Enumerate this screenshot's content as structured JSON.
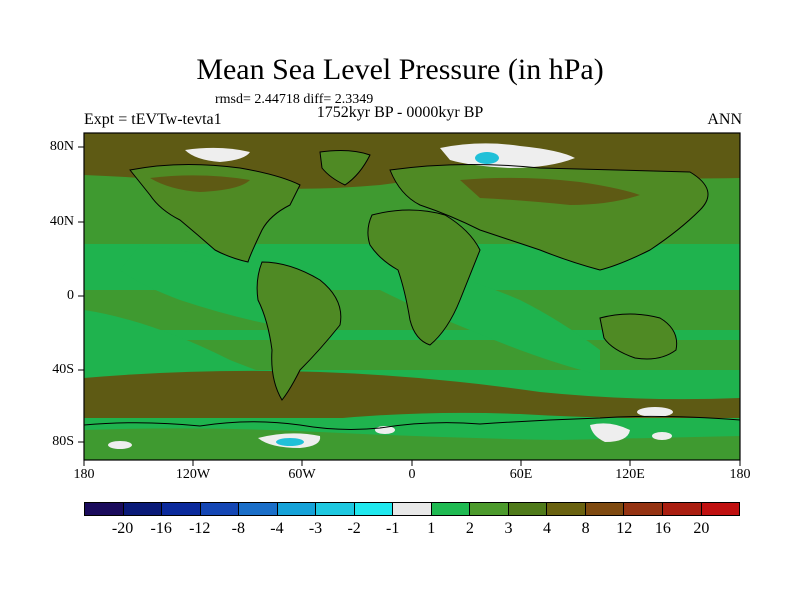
{
  "header": {
    "title": "Mean Sea Level Pressure (in hPa)",
    "stats": "rmsd= 2.44718 diff= 2.3349",
    "period": "1752kyr BP - 0000kyr BP",
    "experiment": "Expt = tEVTw-tevta1",
    "season": "ANN"
  },
  "axes": {
    "lat_ticks": [
      "80N",
      "40N",
      "0",
      "40S",
      "80S"
    ],
    "lon_ticks": [
      "180",
      "120W",
      "60W",
      "0",
      "60E",
      "120E",
      "180"
    ]
  },
  "colorbar": {
    "colors": [
      "#1a0b5c",
      "#0a1a78",
      "#0b2a9c",
      "#1446b4",
      "#1a6ec8",
      "#15a2d8",
      "#1ec8e0",
      "#20e8ee",
      "#e8e8e8",
      "#1fba52",
      "#4c9a2c",
      "#4f7a1a",
      "#6a6210",
      "#7f4a10",
      "#953312",
      "#aa1e10",
      "#c01010"
    ],
    "labels": [
      "-20",
      "-16",
      "-12",
      "-8",
      "-4",
      "-3",
      "-2",
      "-1",
      "1",
      "2",
      "3",
      "4",
      "8",
      "12",
      "16",
      "20"
    ]
  },
  "palette": {
    "land_green": "#4a8c2a",
    "ocean_green": "#1fb34e",
    "brown": "#5e5a14",
    "white": "#eeeeee",
    "cyan": "#20c0d8"
  }
}
